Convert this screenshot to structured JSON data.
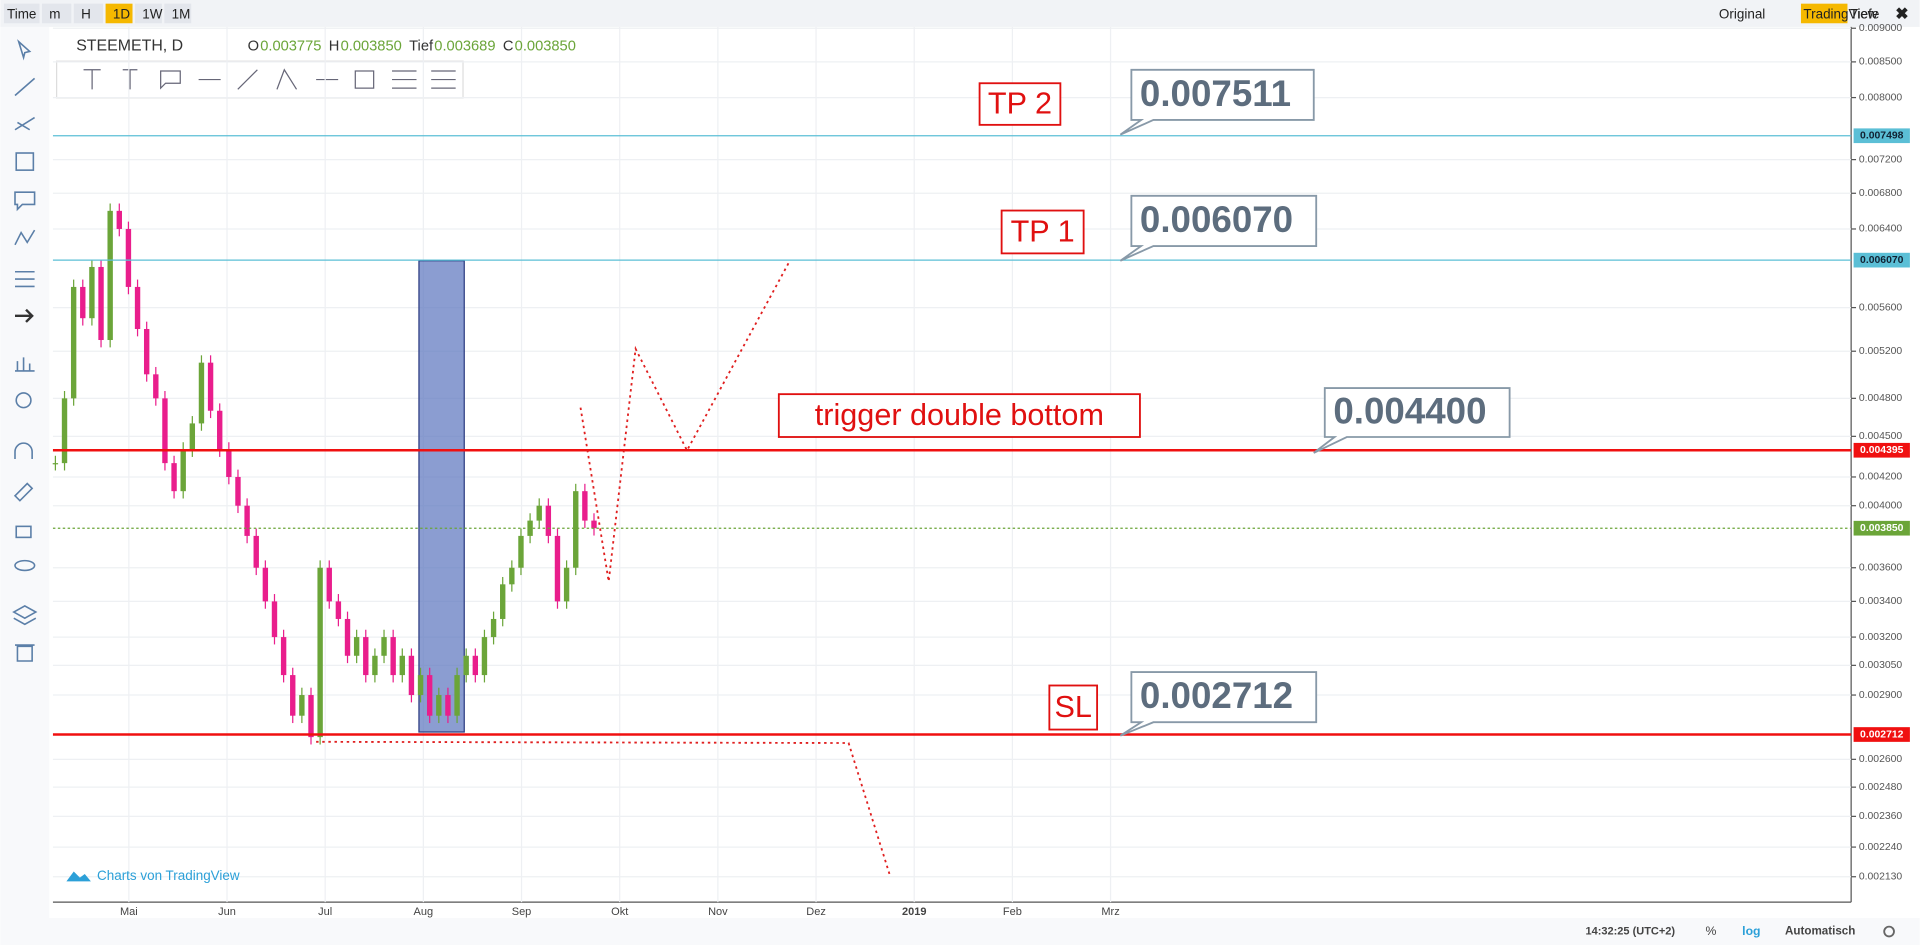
{
  "toolbar": {
    "left": [
      "Time",
      "m",
      "H",
      "1D",
      "1W",
      "1M"
    ],
    "right": [
      "Original",
      "TradingView",
      "Tiefe"
    ]
  },
  "header": {
    "symbol": "STEEMETH, D",
    "ohlc": [
      {
        "label": "O",
        "value": "0.003775"
      },
      {
        "label": "H",
        "value": "0.003850"
      },
      {
        "label": "Tief",
        "value": "0.003689"
      },
      {
        "label": "C",
        "value": "0.003850"
      }
    ]
  },
  "chart": {
    "type": "candlestick",
    "log_scale": true,
    "grid": true,
    "ylim": [
      0.00204,
      0.00902
    ],
    "yticks": [
      {
        "value": 0.009,
        "label": "0.009000"
      },
      {
        "value": 0.0085,
        "label": "0.008500"
      },
      {
        "value": 0.008,
        "label": "0.008000"
      },
      {
        "value": 0.0072,
        "label": "0.007200"
      },
      {
        "value": 0.0068,
        "label": "0.006800"
      },
      {
        "value": 0.0064,
        "label": "0.006400"
      },
      {
        "value": 0.0056,
        "label": "0.005600"
      },
      {
        "value": 0.0052,
        "label": "0.005200"
      },
      {
        "value": 0.0048,
        "label": "0.004800"
      },
      {
        "value": 0.0045,
        "label": "0.004500"
      },
      {
        "value": 0.0042,
        "label": "0.004200"
      },
      {
        "value": 0.004,
        "label": "0.004000"
      },
      {
        "value": 0.0036,
        "label": "0.003600"
      },
      {
        "value": 0.0034,
        "label": "0.003400"
      },
      {
        "value": 0.0032,
        "label": "0.003200"
      },
      {
        "value": 0.00305,
        "label": "0.003050"
      },
      {
        "value": 0.0029,
        "label": "0.002900"
      },
      {
        "value": 0.0026,
        "label": "0.002600"
      },
      {
        "value": 0.00248,
        "label": "0.002480"
      },
      {
        "value": 0.00236,
        "label": "0.002360"
      },
      {
        "value": 0.00224,
        "label": "0.002240"
      },
      {
        "value": 0.00213,
        "label": "0.002130"
      }
    ],
    "months": [
      "Mai",
      "Jun",
      "Jul",
      "Aug",
      "Sep",
      "Okt",
      "Nov",
      "Dez",
      "2019",
      "Feb",
      "Mrz"
    ],
    "closes": [
      0.0043,
      0.0048,
      0.0058,
      0.0055,
      0.006,
      0.0053,
      0.0066,
      0.0064,
      0.0058,
      0.0054,
      0.005,
      0.0048,
      0.0043,
      0.0041,
      0.0044,
      0.0046,
      0.0051,
      0.0047,
      0.0044,
      0.0042,
      0.004,
      0.0038,
      0.0036,
      0.0034,
      0.0032,
      0.003,
      0.0028,
      0.0029,
      0.0027,
      0.0036,
      0.0034,
      0.0033,
      0.0031,
      0.0032,
      0.003,
      0.0031,
      0.0032,
      0.003,
      0.0031,
      0.0029,
      0.003,
      0.0028,
      0.0029,
      0.0028,
      0.003,
      0.0031,
      0.003,
      0.0032,
      0.0033,
      0.0035,
      0.0036,
      0.0038,
      0.0039,
      0.004,
      0.0038,
      0.0034,
      0.0036,
      0.0041,
      0.0039,
      0.00385
    ],
    "levels": [
      {
        "value": 0.007498,
        "label": "0.007498",
        "color": "#5bbfd6"
      },
      {
        "value": 0.00607,
        "label": "0.006070",
        "color": "#5bbfd6"
      },
      {
        "value": 0.004395,
        "label": "0.004395",
        "color": "#f01010"
      },
      {
        "value": 0.00385,
        "label": "0.003850",
        "color": "#6ba539"
      },
      {
        "value": 0.002712,
        "label": "0.002712",
        "color": "#f01010"
      }
    ],
    "annotations": [
      {
        "text": "TP 2",
        "callout": "0.007511"
      },
      {
        "text": "TP 1",
        "callout": "0.006070"
      },
      {
        "text": "trigger double bottom",
        "callout": "0.004400"
      },
      {
        "text": "SL",
        "callout": "0.002712"
      }
    ],
    "watermark": "Charts von TradingView"
  },
  "footer": {
    "time": "14:32:25 (UTC+2)",
    "percent": "%",
    "log": "log",
    "auto": "Automatisch"
  }
}
